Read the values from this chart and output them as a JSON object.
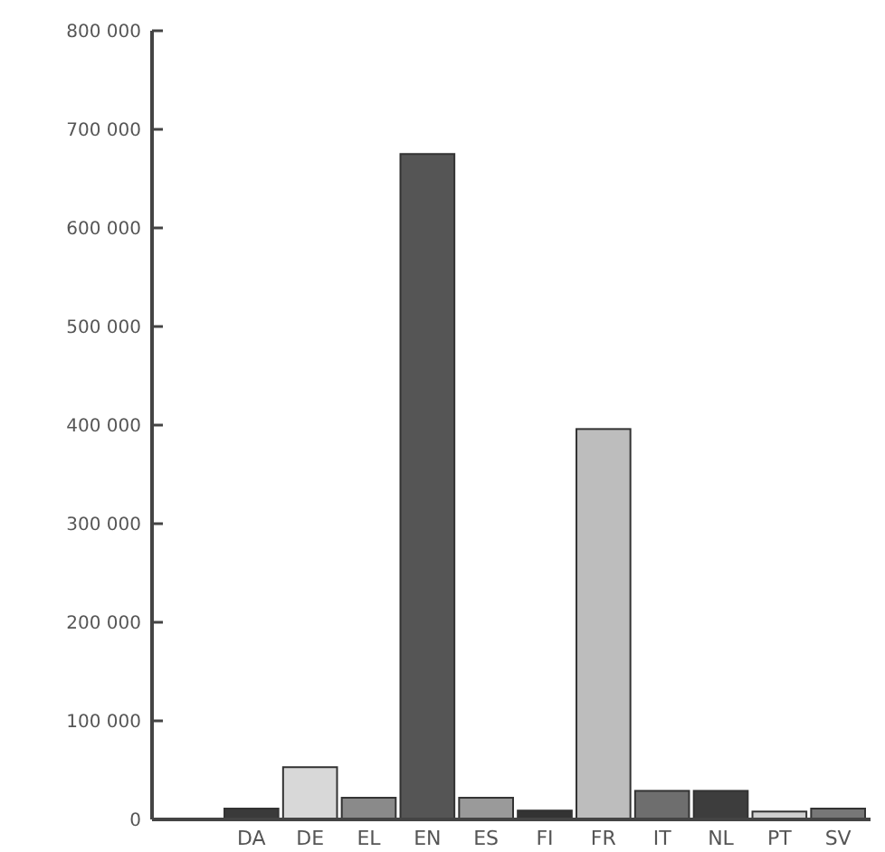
{
  "chart_data": {
    "type": "bar",
    "categories": [
      "DA",
      "DE",
      "EL",
      "EN",
      "ES",
      "FI",
      "FR",
      "IT",
      "NL",
      "PT",
      "SV"
    ],
    "values": [
      11000,
      53000,
      22000,
      675000,
      22000,
      9000,
      396000,
      29000,
      29000,
      8000,
      11000
    ],
    "colors": [
      "#3a3a3a",
      "#d8d8d8",
      "#8a8a8a",
      "#555555",
      "#9a9a9a",
      "#333333",
      "#bdbdbd",
      "#6e6e6e",
      "#3d3d3d",
      "#d0d0d0",
      "#777777"
    ],
    "ylim": [
      0,
      800000
    ],
    "yticks": [
      {
        "value": 0,
        "label": "0"
      },
      {
        "value": 100000,
        "label": "100 000"
      },
      {
        "value": 200000,
        "label": "200 000"
      },
      {
        "value": 300000,
        "label": "300 000"
      },
      {
        "value": 400000,
        "label": "400 000"
      },
      {
        "value": 500000,
        "label": "500 000"
      },
      {
        "value": 600000,
        "label": "600 000"
      },
      {
        "value": 700000,
        "label": "700 000"
      },
      {
        "value": 800000,
        "label": "800 000"
      }
    ],
    "grid": false
  }
}
